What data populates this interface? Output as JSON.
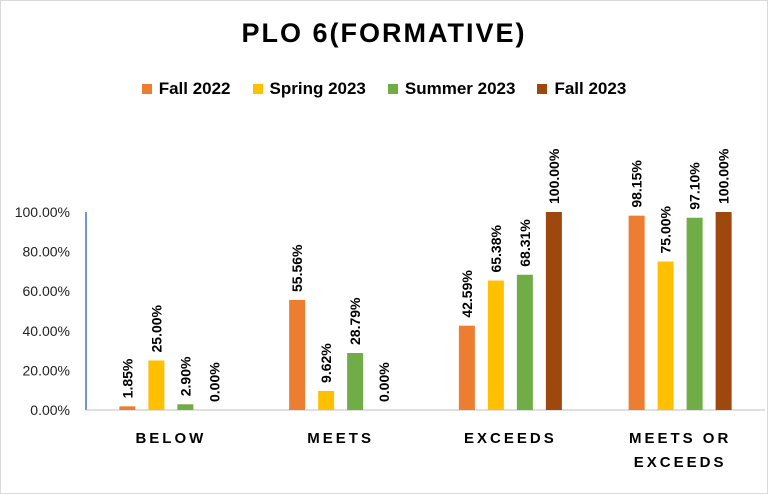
{
  "chart_data": {
    "type": "bar",
    "title": "PLO 6(FORMATIVE)",
    "categories": [
      [
        "BELOW"
      ],
      [
        "MEETS"
      ],
      [
        "EXCEEDS"
      ],
      [
        "MEETS OR",
        "EXCEEDS"
      ]
    ],
    "series": [
      {
        "name": "Fall 2022",
        "color": "#ED7D31",
        "values": [
          1.85,
          55.56,
          42.59,
          98.15
        ],
        "labels": [
          "1.85%",
          "55.56%",
          "42.59%",
          "98.15%"
        ]
      },
      {
        "name": "Spring 2023",
        "color": "#FFC000",
        "values": [
          25.0,
          9.62,
          65.38,
          75.0
        ],
        "labels": [
          "25.00%",
          "9.62%",
          "65.38%",
          "75.00%"
        ]
      },
      {
        "name": "Summer 2023",
        "color": "#70AD47",
        "values": [
          2.9,
          28.79,
          68.31,
          97.1
        ],
        "labels": [
          "2.90%",
          "28.79%",
          "68.31%",
          "97.10%"
        ]
      },
      {
        "name": "Fall 2023",
        "color": "#9E480E",
        "values": [
          0.0,
          0.0,
          100.0,
          100.0
        ],
        "labels": [
          "0.00%",
          "0.00%",
          "100.00%",
          "100.00%"
        ]
      }
    ],
    "yticks": [
      "0.00%",
      "20.00%",
      "40.00%",
      "60.00%",
      "80.00%",
      "100.00%"
    ],
    "ylim": [
      0,
      100
    ],
    "grid": false,
    "legend_position": "top"
  }
}
